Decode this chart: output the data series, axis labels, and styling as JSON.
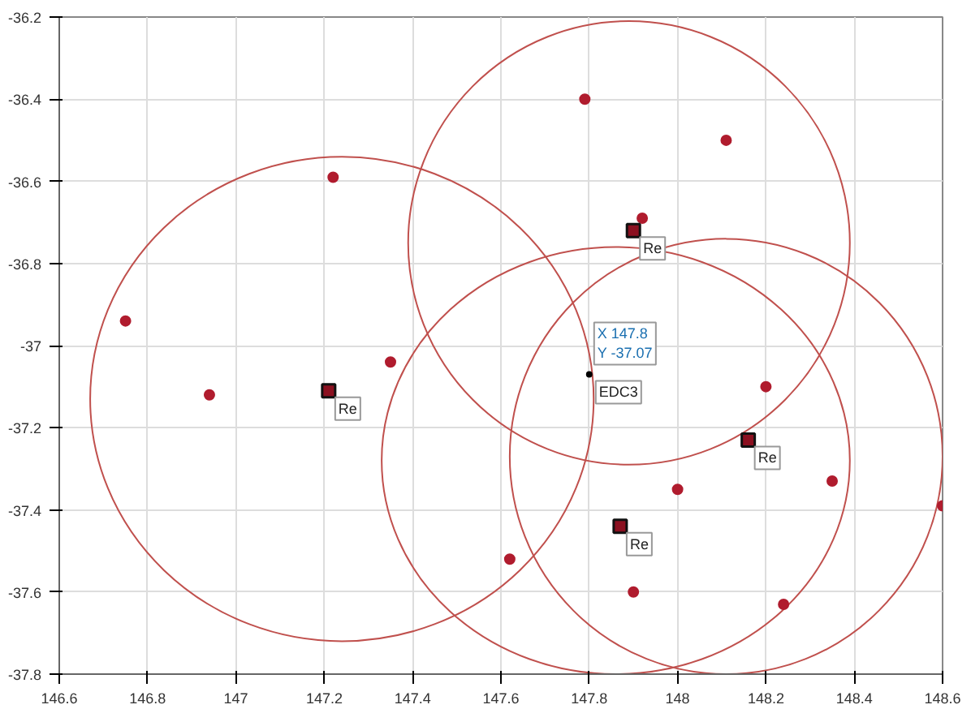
{
  "chart_data": {
    "type": "scatter",
    "xlim": [
      146.6,
      148.6
    ],
    "ylim": [
      -37.8,
      -36.2
    ],
    "xticks": [
      146.6,
      146.8,
      147,
      147.2,
      147.4,
      147.6,
      147.8,
      148,
      148.2,
      148.4,
      148.6
    ],
    "yticks": [
      -37.8,
      -37.6,
      -37.4,
      -37.2,
      -37,
      -36.8,
      -36.6,
      -36.4,
      -36.2
    ],
    "grid": true,
    "series": [
      {
        "marker": "circle",
        "color": "#b01c2e",
        "x": [
          146.75,
          146.94,
          147.22,
          147.35,
          147.79,
          148.11,
          147.92,
          148.2,
          148.35,
          148.6,
          147.62,
          147.9,
          148.0,
          148.24
        ],
        "values": [
          -36.94,
          -37.12,
          -36.59,
          -37.04,
          -36.4,
          -36.5,
          -36.69,
          -37.1,
          -37.33,
          -37.39,
          -37.52,
          -37.6,
          -37.35,
          -37.63
        ]
      },
      {
        "marker": "square",
        "color": "#8b1020",
        "x": [
          147.21,
          147.9,
          148.16,
          147.87
        ],
        "values": [
          -37.11,
          -36.72,
          -37.23,
          -37.44
        ]
      },
      {
        "marker": "circle",
        "color": "#000000",
        "x": [
          147.8
        ],
        "values": [
          -37.07
        ]
      }
    ],
    "annotations": [
      {
        "text": "Re",
        "x": 147.21,
        "y": -37.11
      },
      {
        "text": "Re",
        "x": 147.9,
        "y": -36.72
      },
      {
        "text": "Re",
        "x": 148.16,
        "y": -37.23
      },
      {
        "text": "Re",
        "x": 147.87,
        "y": -37.44
      },
      {
        "text": "EDC3",
        "x": 147.8,
        "y": -37.07
      },
      {
        "text": "X 147.8\nY -37.07",
        "x": 147.8,
        "y": -37.07
      }
    ]
  }
}
